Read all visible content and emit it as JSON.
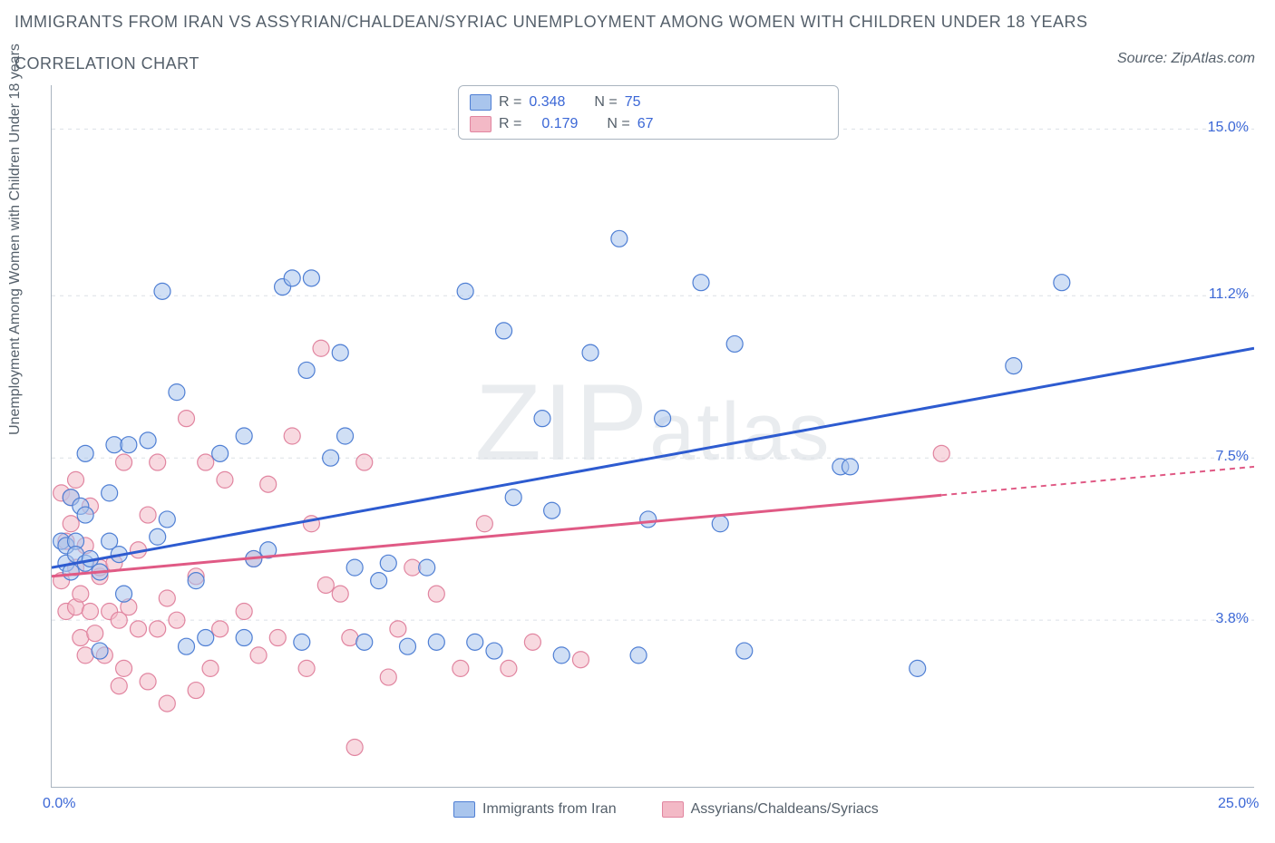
{
  "title": "IMMIGRANTS FROM IRAN VS ASSYRIAN/CHALDEAN/SYRIAC UNEMPLOYMENT AMONG WOMEN WITH CHILDREN UNDER 18 YEARS",
  "subtitle": "CORRELATION CHART",
  "source": "Source: ZipAtlas.com",
  "watermark_zip": "ZIP",
  "watermark_atlas": "atlas",
  "y_axis_label": "Unemployment Among Women with Children Under 18 years",
  "xlim": [
    0,
    25
  ],
  "ylim": [
    0,
    16
  ],
  "x_ticks": [
    {
      "v": 0,
      "label": "0.0%"
    },
    {
      "v": 4.17,
      "label": ""
    },
    {
      "v": 8.33,
      "label": ""
    },
    {
      "v": 12.5,
      "label": ""
    },
    {
      "v": 16.67,
      "label": ""
    },
    {
      "v": 20.83,
      "label": ""
    },
    {
      "v": 25,
      "label": "25.0%"
    }
  ],
  "y_ticks": [
    {
      "v": 3.8,
      "label": "3.8%"
    },
    {
      "v": 7.5,
      "label": "7.5%"
    },
    {
      "v": 11.2,
      "label": "11.2%"
    },
    {
      "v": 15.0,
      "label": "15.0%"
    }
  ],
  "grid_color": "#dbe0e6",
  "axis_color": "#a9b4bf",
  "colors": {
    "blue_fill": "#a9c5ed",
    "blue_stroke": "#4f7fd4",
    "blue_line": "#2d5bd0",
    "pink_fill": "#f3b9c6",
    "pink_stroke": "#e185a0",
    "pink_line": "#e05a85",
    "text_muted": "#55606b",
    "tick_blue": "#3b67d6"
  },
  "marker_radius": 9,
  "marker_fill_opacity": 0.55,
  "series": [
    {
      "name": "Immigrants from Iran",
      "color_key": "blue",
      "r_label": "R =",
      "r_value": "0.348",
      "n_label": "N =",
      "n_value": "75",
      "trend": {
        "x1": 0,
        "y1": 5.0,
        "x2": 25,
        "y2": 10.0,
        "solid_to_x": 25
      },
      "points": [
        [
          0.2,
          5.6
        ],
        [
          0.3,
          5.1
        ],
        [
          0.3,
          5.5
        ],
        [
          0.4,
          4.9
        ],
        [
          0.4,
          6.6
        ],
        [
          0.5,
          5.6
        ],
        [
          0.5,
          5.3
        ],
        [
          0.6,
          6.4
        ],
        [
          0.7,
          5.1
        ],
        [
          0.7,
          6.2
        ],
        [
          0.7,
          7.6
        ],
        [
          0.8,
          5.2
        ],
        [
          1.0,
          3.1
        ],
        [
          1.0,
          4.9
        ],
        [
          1.2,
          5.6
        ],
        [
          1.2,
          6.7
        ],
        [
          1.3,
          7.8
        ],
        [
          1.4,
          5.3
        ],
        [
          1.5,
          4.4
        ],
        [
          1.6,
          7.8
        ],
        [
          2.0,
          7.9
        ],
        [
          2.2,
          5.7
        ],
        [
          2.3,
          11.3
        ],
        [
          2.4,
          6.1
        ],
        [
          2.6,
          9.0
        ],
        [
          2.8,
          3.2
        ],
        [
          3.0,
          4.7
        ],
        [
          3.2,
          3.4
        ],
        [
          3.5,
          7.6
        ],
        [
          4.0,
          8.0
        ],
        [
          4.0,
          3.4
        ],
        [
          4.2,
          5.2
        ],
        [
          4.5,
          5.4
        ],
        [
          4.8,
          11.4
        ],
        [
          5.0,
          11.6
        ],
        [
          5.2,
          3.3
        ],
        [
          5.3,
          9.5
        ],
        [
          5.4,
          11.6
        ],
        [
          5.8,
          7.5
        ],
        [
          6.0,
          9.9
        ],
        [
          6.1,
          8.0
        ],
        [
          6.3,
          5.0
        ],
        [
          6.5,
          3.3
        ],
        [
          6.8,
          4.7
        ],
        [
          7.0,
          5.1
        ],
        [
          7.4,
          3.2
        ],
        [
          7.8,
          5.0
        ],
        [
          8.0,
          3.3
        ],
        [
          8.6,
          11.3
        ],
        [
          8.8,
          3.3
        ],
        [
          9.2,
          3.1
        ],
        [
          9.4,
          10.4
        ],
        [
          9.6,
          6.6
        ],
        [
          10.2,
          8.4
        ],
        [
          10.4,
          6.3
        ],
        [
          10.6,
          3.0
        ],
        [
          11.2,
          9.9
        ],
        [
          11.8,
          12.5
        ],
        [
          12.2,
          3.0
        ],
        [
          12.4,
          6.1
        ],
        [
          12.7,
          8.4
        ],
        [
          13.5,
          11.5
        ],
        [
          13.9,
          6.0
        ],
        [
          14.2,
          10.1
        ],
        [
          14.4,
          3.1
        ],
        [
          16.4,
          7.3
        ],
        [
          16.6,
          7.3
        ],
        [
          18.0,
          2.7
        ],
        [
          20.0,
          9.6
        ],
        [
          21.0,
          11.5
        ]
      ]
    },
    {
      "name": "Assyrians/Chaldeans/Syriacs",
      "color_key": "pink",
      "r_label": "R =",
      "r_value": "0.179",
      "n_label": "N =",
      "n_value": "67",
      "trend": {
        "x1": 0,
        "y1": 4.8,
        "x2": 25,
        "y2": 7.3,
        "solid_to_x": 18.5
      },
      "points": [
        [
          0.2,
          4.7
        ],
        [
          0.2,
          6.7
        ],
        [
          0.3,
          4.0
        ],
        [
          0.3,
          5.6
        ],
        [
          0.4,
          6.0
        ],
        [
          0.4,
          6.6
        ],
        [
          0.5,
          4.1
        ],
        [
          0.5,
          5.0
        ],
        [
          0.5,
          7.0
        ],
        [
          0.6,
          3.4
        ],
        [
          0.6,
          4.4
        ],
        [
          0.7,
          3.0
        ],
        [
          0.7,
          5.5
        ],
        [
          0.8,
          4.0
        ],
        [
          0.8,
          6.4
        ],
        [
          0.9,
          3.5
        ],
        [
          1.0,
          4.8
        ],
        [
          1.0,
          5.0
        ],
        [
          1.1,
          3.0
        ],
        [
          1.2,
          4.0
        ],
        [
          1.3,
          5.1
        ],
        [
          1.4,
          2.3
        ],
        [
          1.4,
          3.8
        ],
        [
          1.5,
          2.7
        ],
        [
          1.5,
          7.4
        ],
        [
          1.6,
          4.1
        ],
        [
          1.8,
          3.6
        ],
        [
          1.8,
          5.4
        ],
        [
          2.0,
          2.4
        ],
        [
          2.0,
          6.2
        ],
        [
          2.2,
          3.6
        ],
        [
          2.2,
          7.4
        ],
        [
          2.4,
          1.9
        ],
        [
          2.4,
          4.3
        ],
        [
          2.6,
          3.8
        ],
        [
          2.8,
          8.4
        ],
        [
          3.0,
          2.2
        ],
        [
          3.0,
          4.8
        ],
        [
          3.2,
          7.4
        ],
        [
          3.3,
          2.7
        ],
        [
          3.5,
          3.6
        ],
        [
          3.6,
          7.0
        ],
        [
          4.0,
          4.0
        ],
        [
          4.2,
          5.2
        ],
        [
          4.3,
          3.0
        ],
        [
          4.5,
          6.9
        ],
        [
          4.7,
          3.4
        ],
        [
          5.0,
          8.0
        ],
        [
          5.3,
          2.7
        ],
        [
          5.4,
          6.0
        ],
        [
          5.6,
          10.0
        ],
        [
          5.7,
          4.6
        ],
        [
          6.0,
          4.4
        ],
        [
          6.2,
          3.4
        ],
        [
          6.3,
          0.9
        ],
        [
          6.5,
          7.4
        ],
        [
          7.0,
          2.5
        ],
        [
          7.2,
          3.6
        ],
        [
          7.5,
          5.0
        ],
        [
          8.0,
          4.4
        ],
        [
          8.5,
          2.7
        ],
        [
          9.0,
          6.0
        ],
        [
          9.5,
          2.7
        ],
        [
          10.0,
          3.3
        ],
        [
          11.0,
          2.9
        ],
        [
          18.5,
          7.6
        ]
      ]
    }
  ]
}
